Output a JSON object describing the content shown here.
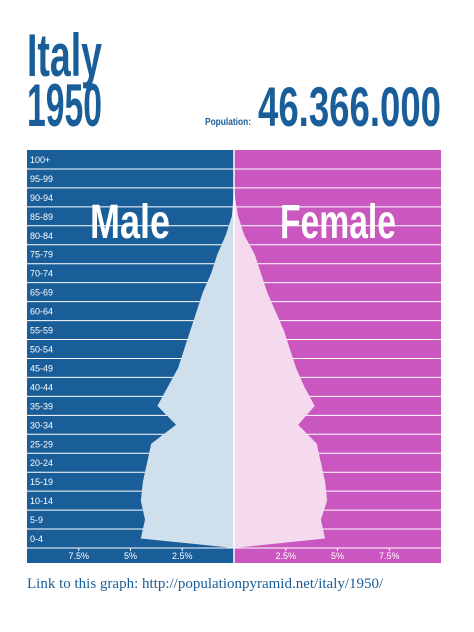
{
  "header": {
    "country": "Italy",
    "year": "1950",
    "population_label": "Population:",
    "population": "46.366.000"
  },
  "chart_data": {
    "type": "pyramid",
    "categories": [
      "0-4",
      "5-9",
      "10-14",
      "15-19",
      "20-24",
      "25-29",
      "30-34",
      "35-39",
      "40-44",
      "45-49",
      "50-54",
      "55-59",
      "60-64",
      "65-69",
      "70-74",
      "75-79",
      "80-84",
      "85-89",
      "90-94",
      "95-99",
      "100+"
    ],
    "series": [
      {
        "name": "Male",
        "color": "#1a5e99",
        "shape_color": "#cfe0ec",
        "values": [
          4.5,
          4.3,
          4.5,
          4.4,
          4.2,
          4.0,
          2.8,
          3.7,
          3.2,
          2.7,
          2.4,
          2.1,
          1.8,
          1.5,
          1.1,
          0.8,
          0.4,
          0.1,
          0.03,
          0,
          0
        ]
      },
      {
        "name": "Female",
        "color": "#c957bf",
        "shape_color": "#f5d9ef",
        "values": [
          4.4,
          4.2,
          4.5,
          4.4,
          4.2,
          4.0,
          3.1,
          3.9,
          3.4,
          3.0,
          2.7,
          2.4,
          2.0,
          1.6,
          1.3,
          1.0,
          0.5,
          0.2,
          0.05,
          0,
          0
        ]
      }
    ],
    "xlim": [
      0,
      10
    ],
    "xticks": [
      {
        "value": 2.5,
        "label": "2.5%"
      },
      {
        "value": 5,
        "label": "5%"
      },
      {
        "value": 7.5,
        "label": "7.5%"
      }
    ]
  },
  "footer": {
    "link": "Link to this graph: http://populationpyramid.net/italy/1950/"
  }
}
